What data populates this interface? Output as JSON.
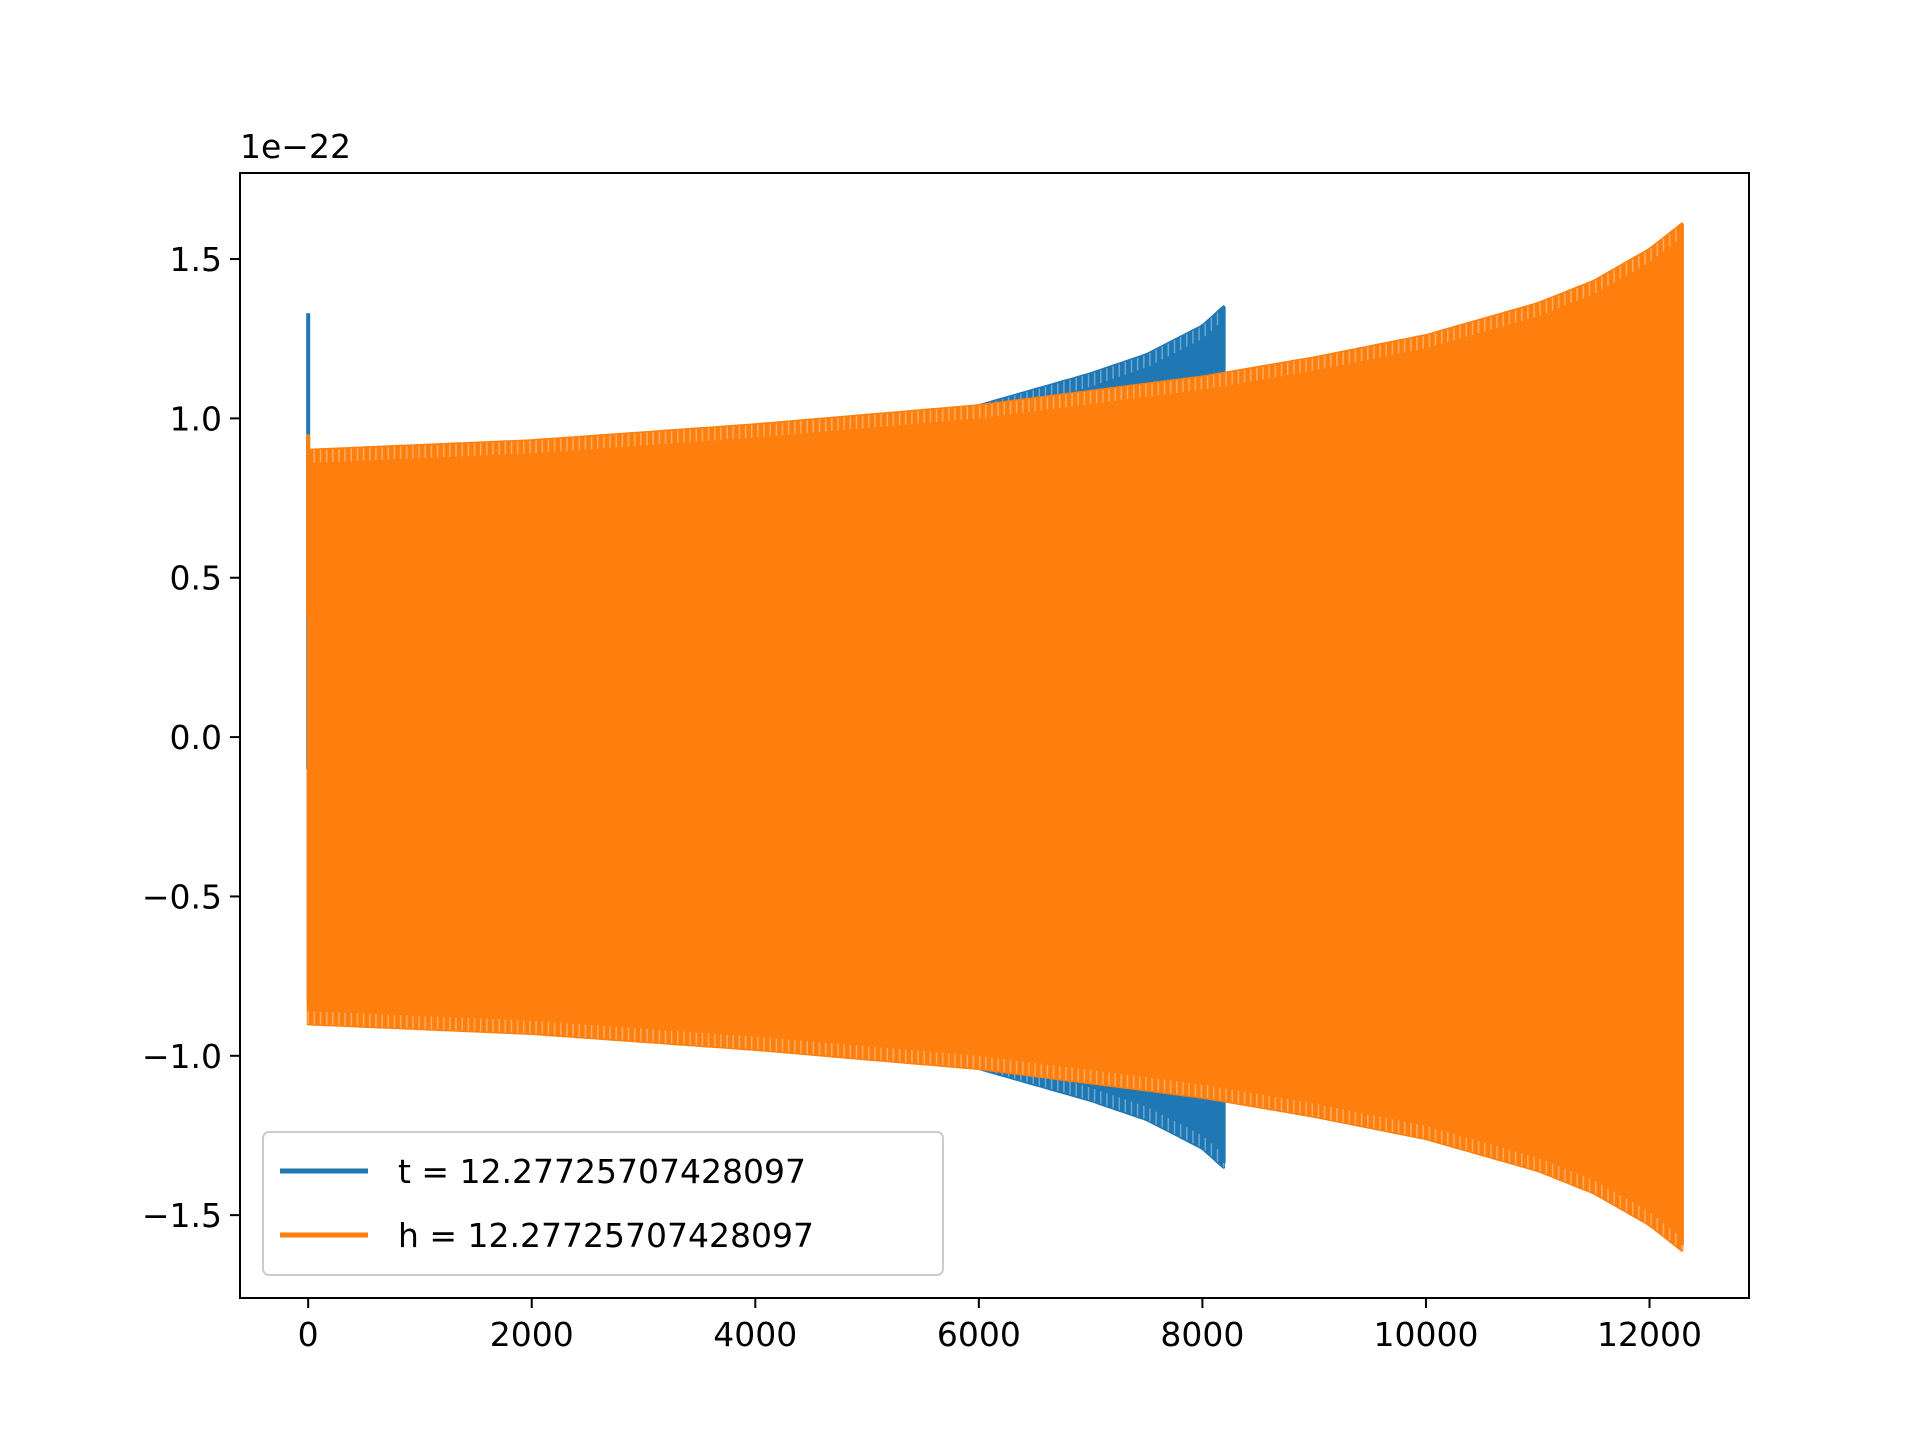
{
  "chart_data": {
    "type": "line",
    "title": "",
    "xlabel": "",
    "ylabel": "",
    "xlim": [
      -610,
      12890
    ],
    "ylim": [
      -1.76,
      1.77
    ],
    "y_offset_text": "1e−22",
    "x_ticks": [
      {
        "value": 0,
        "label": "0"
      },
      {
        "value": 2000,
        "label": "2000"
      },
      {
        "value": 4000,
        "label": "4000"
      },
      {
        "value": 6000,
        "label": "6000"
      },
      {
        "value": 8000,
        "label": "8000"
      },
      {
        "value": 10000,
        "label": "10000"
      },
      {
        "value": 12000,
        "label": "12000"
      }
    ],
    "y_ticks": [
      {
        "value": 1.5,
        "label": "1.5"
      },
      {
        "value": 1.0,
        "label": "1.0"
      },
      {
        "value": 0.5,
        "label": "0.5"
      },
      {
        "value": 0.0,
        "label": "0.0"
      },
      {
        "value": -0.5,
        "label": "−0.5"
      },
      {
        "value": -1.0,
        "label": "−1.0"
      },
      {
        "value": -1.5,
        "label": "−1.5"
      }
    ],
    "grid": false,
    "legend_position": "lower-left",
    "series": [
      {
        "name": "t = 12.27725707428097",
        "color": "#1f77b4",
        "x_end": 8190,
        "start_spike": {
          "x": 0,
          "y_max": 1.33,
          "y_min": -0.1
        },
        "envelope": {
          "x": [
            0,
            1000,
            2000,
            3000,
            4000,
            5000,
            6000,
            7000,
            7500,
            8000,
            8190
          ],
          "amplitude": [
            0.83,
            0.85,
            0.87,
            0.9,
            0.94,
            0.98,
            1.04,
            1.14,
            1.2,
            1.29,
            1.35
          ]
        }
      },
      {
        "name": "h = 12.27725707428097",
        "color": "#ff7f0e",
        "x_end": 12290,
        "start_spike": {
          "x": 0,
          "y_max": 0.95,
          "y_min": 0.38
        },
        "envelope": {
          "x": [
            0,
            2000,
            4000,
            6000,
            8000,
            9000,
            10000,
            11000,
            11500,
            12000,
            12290
          ],
          "amplitude": [
            0.9,
            0.93,
            0.98,
            1.04,
            1.13,
            1.19,
            1.26,
            1.36,
            1.43,
            1.53,
            1.61
          ]
        }
      }
    ]
  }
}
